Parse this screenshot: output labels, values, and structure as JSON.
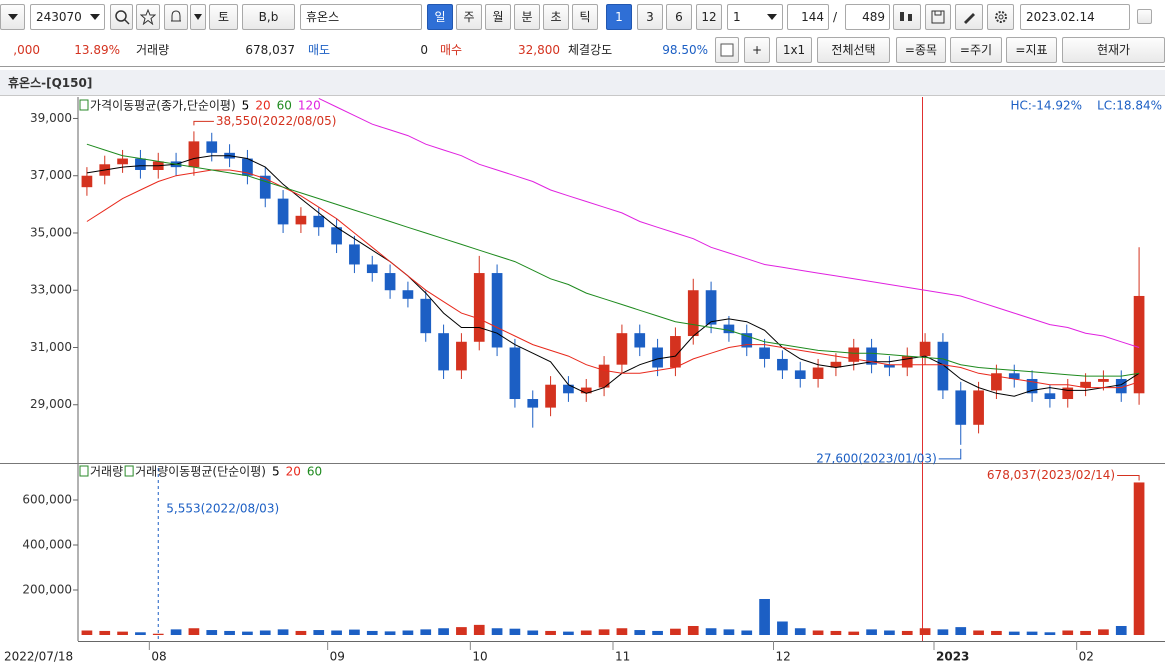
{
  "toolbar": {
    "row1": {
      "code": "243070",
      "side": "토",
      "case": "B,b",
      "name": "휴온스",
      "periods": [
        "일",
        "주",
        "월",
        "분",
        "초",
        "틱"
      ],
      "counts": [
        "1",
        "3",
        "6",
        "12"
      ],
      "unit": "1",
      "shown": "144",
      "slash": "/",
      "total": "489",
      "date": "2023.02.14"
    },
    "row2": {
      "price": ",000",
      "change": "13.89%",
      "volume_label": "거래량",
      "volume": "678,037",
      "ask_label": "매도",
      "ask": "0",
      "bid_label": "매수",
      "bid": "32,800",
      "strength_label": "체결강도",
      "strength": "98.50%",
      "buttons": [
        "+",
        "1x1",
        "전체선택",
        "=종목",
        "=주기",
        "=지표",
        "현재가"
      ]
    }
  },
  "chart_title": "휴온스-[Q150]",
  "chart_data": [
    {
      "type": "candlestick",
      "legend_label": "가격이동평균(종가,단순이평)",
      "stats": [
        "HC:-14.92%",
        "LC:18.84%"
      ],
      "annotations": [
        "38,550(2022/08/05)",
        "27,600(2023/01/03)"
      ],
      "up_color": "#d4321f",
      "down_color": "#1c5fc4",
      "categories": [
        "2022/07/18",
        null,
        null,
        null,
        "08",
        null,
        null,
        null,
        null,
        null,
        null,
        null,
        null,
        null,
        "09",
        null,
        null,
        null,
        null,
        null,
        null,
        null,
        "10",
        null,
        null,
        null,
        null,
        null,
        null,
        null,
        "11",
        null,
        null,
        null,
        null,
        null,
        null,
        null,
        null,
        "12",
        null,
        null,
        null,
        null,
        null,
        null,
        null,
        null,
        "2023",
        null,
        null,
        null,
        null,
        null,
        null,
        null,
        "02",
        null,
        null,
        null
      ],
      "open": [
        36600,
        37000,
        37400,
        37600,
        37200,
        37500,
        37300,
        38200,
        37800,
        37600,
        37000,
        36200,
        35300,
        35600,
        35200,
        34600,
        33900,
        33600,
        33000,
        32700,
        31500,
        30200,
        31200,
        33600,
        31000,
        29200,
        28900,
        29700,
        29400,
        29600,
        30400,
        31500,
        31000,
        30300,
        31400,
        33000,
        31800,
        31500,
        31000,
        30600,
        30200,
        29900,
        30300,
        30500,
        31000,
        30400,
        30300,
        30700,
        31200,
        29500,
        28300,
        29500,
        30100,
        29900,
        29400,
        29200,
        29600,
        29800,
        29900,
        29400
      ],
      "high": [
        37300,
        37700,
        37900,
        37900,
        37800,
        37800,
        38550,
        38500,
        38100,
        37900,
        37300,
        36500,
        35900,
        35900,
        35500,
        34900,
        34200,
        33900,
        33300,
        33000,
        31800,
        31500,
        34200,
        33900,
        31300,
        29500,
        30000,
        30000,
        29900,
        30700,
        31800,
        31800,
        31300,
        31700,
        33400,
        33300,
        32100,
        31800,
        31300,
        30900,
        30500,
        30600,
        30800,
        31300,
        31300,
        30700,
        31000,
        31500,
        31500,
        29800,
        29800,
        30400,
        30400,
        30200,
        29700,
        29900,
        30100,
        30200,
        30200,
        34500
      ],
      "low": [
        36300,
        36700,
        37100,
        36900,
        36900,
        37000,
        37000,
        37500,
        37300,
        36700,
        35900,
        35000,
        35000,
        34900,
        34300,
        33600,
        33300,
        32700,
        32400,
        31200,
        29900,
        29900,
        30900,
        30700,
        28900,
        28200,
        28600,
        29100,
        29100,
        29300,
        30100,
        30700,
        30000,
        30000,
        31100,
        31500,
        31200,
        30700,
        30300,
        29900,
        29600,
        29600,
        30000,
        30200,
        30100,
        30000,
        30000,
        30400,
        29200,
        27600,
        28000,
        29200,
        29600,
        29100,
        28900,
        28900,
        29300,
        29500,
        29100,
        29000
      ],
      "close": [
        37000,
        37400,
        37600,
        37200,
        37500,
        37300,
        38200,
        37800,
        37600,
        37000,
        36200,
        35300,
        35600,
        35200,
        34600,
        33900,
        33600,
        33000,
        32700,
        31500,
        30200,
        31200,
        33600,
        31000,
        29200,
        28900,
        29700,
        29400,
        29600,
        30400,
        31500,
        31000,
        30300,
        31400,
        33000,
        31800,
        31500,
        31000,
        30600,
        30200,
        29900,
        30300,
        30500,
        31000,
        30400,
        30300,
        30700,
        31200,
        29500,
        28300,
        29500,
        30100,
        29900,
        29400,
        29200,
        29600,
        29800,
        29900,
        29400,
        32800
      ],
      "series": [
        {
          "name": "5",
          "color": "#000000",
          "values": [
            37100,
            37200,
            37300,
            37350,
            37350,
            37400,
            37600,
            37700,
            37700,
            37600,
            37300,
            36700,
            36200,
            35700,
            35200,
            34800,
            34400,
            34000,
            33500,
            32900,
            32200,
            31700,
            31700,
            31500,
            31100,
            30800,
            30500,
            29700,
            29400,
            29600,
            30100,
            30400,
            30600,
            30700,
            31400,
            31900,
            32000,
            31900,
            31600,
            31000,
            30600,
            30400,
            30300,
            30400,
            30500,
            30500,
            30600,
            30700,
            30400,
            29900,
            29600,
            29400,
            29300,
            29500,
            29600,
            29500,
            29500,
            29600,
            29700,
            30100
          ]
        },
        {
          "name": "20",
          "color": "#e8291c",
          "values": [
            35400,
            35800,
            36200,
            36500,
            36800,
            37000,
            37100,
            37200,
            37200,
            37100,
            36900,
            36600,
            36300,
            35900,
            35500,
            35000,
            34500,
            34000,
            33500,
            33000,
            32600,
            32200,
            32000,
            31700,
            31400,
            31100,
            30900,
            30700,
            30400,
            30200,
            30100,
            30100,
            30200,
            30300,
            30600,
            30800,
            31000,
            31100,
            31100,
            31000,
            30900,
            30800,
            30700,
            30600,
            30500,
            30400,
            30400,
            30400,
            30400,
            30300,
            30100,
            30000,
            29900,
            29800,
            29700,
            29700,
            29600,
            29600,
            29600,
            29800
          ]
        },
        {
          "name": "60",
          "color": "#1e8a1e",
          "values": [
            38100,
            37900,
            37700,
            37600,
            37500,
            37400,
            37300,
            37200,
            37100,
            37000,
            36800,
            36600,
            36400,
            36200,
            36000,
            35800,
            35600,
            35400,
            35200,
            35000,
            34800,
            34600,
            34400,
            34200,
            34000,
            33700,
            33400,
            33200,
            32900,
            32700,
            32500,
            32300,
            32100,
            31900,
            31800,
            31700,
            31600,
            31400,
            31200,
            31100,
            31000,
            30900,
            30850,
            30800,
            30800,
            30750,
            30700,
            30650,
            30600,
            30400,
            30300,
            30250,
            30200,
            30150,
            30100,
            30050,
            30000,
            30000,
            30000,
            30100
          ]
        },
        {
          "name": "120",
          "color": "#e021e0",
          "values": [
            null,
            null,
            null,
            null,
            null,
            null,
            null,
            null,
            null,
            null,
            null,
            null,
            null,
            39700,
            39400,
            39100,
            38800,
            38600,
            38400,
            38100,
            37900,
            37700,
            37400,
            37200,
            37000,
            36800,
            36500,
            36300,
            36100,
            35900,
            35700,
            35400,
            35200,
            35000,
            34800,
            34500,
            34300,
            34100,
            33900,
            33800,
            33700,
            33600,
            33500,
            33400,
            33300,
            33200,
            33100,
            33000,
            32900,
            32800,
            32600,
            32400,
            32200,
            32000,
            31800,
            31700,
            31500,
            31400,
            31200,
            31000
          ]
        }
      ],
      "ylim": [
        27000,
        39750
      ],
      "yticks": [
        {
          "value": 29000,
          "label": "29,000"
        },
        {
          "value": 31000,
          "label": "31,000"
        },
        {
          "value": 33000,
          "label": "33,000"
        },
        {
          "value": 35000,
          "label": "35,000"
        },
        {
          "value": 37000,
          "label": "37,000"
        },
        {
          "value": 39000,
          "label": "39,000"
        }
      ],
      "grid": false
    },
    {
      "type": "bar",
      "legend_labels": [
        "거래량",
        "거래량이동평균(단순이평)"
      ],
      "ma_legend": [
        {
          "name": "5",
          "color": "#000000"
        },
        {
          "name": "20",
          "color": "#e8291c"
        },
        {
          "name": "60",
          "color": "#1e8a1e"
        }
      ],
      "annotations": [
        "5,553(2022/08/03)",
        "678,037(2023/02/14)"
      ],
      "values": [
        20000,
        18000,
        15000,
        12000,
        5553,
        25000,
        30000,
        22000,
        18000,
        15000,
        20000,
        25000,
        18000,
        22000,
        20000,
        24000,
        18000,
        16000,
        20000,
        25000,
        30000,
        35000,
        45000,
        30000,
        28000,
        20000,
        18000,
        15000,
        20000,
        25000,
        30000,
        22000,
        18000,
        28000,
        40000,
        30000,
        25000,
        20000,
        160000,
        60000,
        30000,
        20000,
        18000,
        15000,
        25000,
        20000,
        18000,
        30000,
        25000,
        35000,
        20000,
        18000,
        15000,
        15000,
        12000,
        20000,
        18000,
        25000,
        40000,
        678037
      ],
      "ylim": [
        -26700,
        755600
      ],
      "yticks": [
        {
          "value": 200000,
          "label": "200,000"
        },
        {
          "value": 400000,
          "label": "400,000"
        },
        {
          "value": 600000,
          "label": "600,000"
        }
      ],
      "grid": false
    }
  ]
}
